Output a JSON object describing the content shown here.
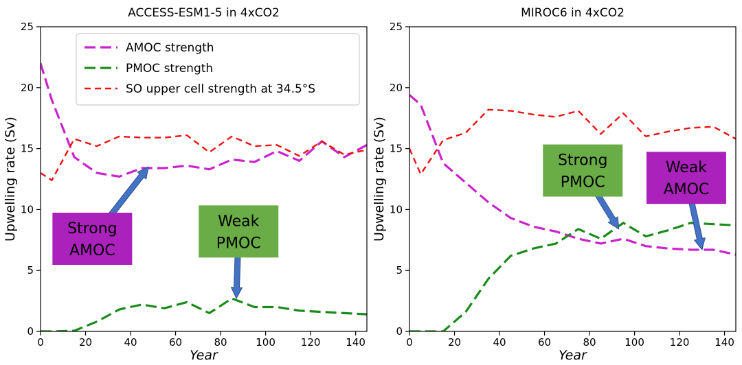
{
  "chart_data": [
    {
      "type": "line",
      "title": "ACCESS-ESM1-5 in 4xCO2",
      "xlabel": "Year",
      "ylabel": "Upwelling rate (Sv)",
      "xlim": [
        0,
        145
      ],
      "ylim": [
        0,
        25
      ],
      "xticks": [
        "0",
        "20",
        "40",
        "60",
        "80",
        "100",
        "120",
        "140"
      ],
      "yticks": [
        "0",
        "5",
        "10",
        "15",
        "20",
        "25"
      ],
      "grid": false,
      "legend": {
        "placement": "top",
        "entries": [
          "AMOC strength",
          "PMOC strength",
          "SO upper cell strength at 34.5°S"
        ]
      },
      "series": [
        {
          "name": "AMOC strength",
          "color": "#cc22cc",
          "style": "long-dash",
          "x": [
            0,
            5,
            15,
            25,
            35,
            45,
            55,
            65,
            75,
            85,
            95,
            105,
            115,
            125,
            135,
            145
          ],
          "y": [
            22.0,
            19.0,
            14.3,
            13.0,
            12.7,
            13.4,
            13.4,
            13.6,
            13.3,
            14.1,
            13.9,
            14.8,
            14.0,
            15.6,
            14.3,
            15.3
          ]
        },
        {
          "name": "PMOC strength",
          "color": "#1a8a1a",
          "style": "long-dash",
          "x": [
            0,
            5,
            15,
            25,
            35,
            45,
            55,
            65,
            75,
            85,
            95,
            105,
            115,
            125,
            135,
            145
          ],
          "y": [
            0.0,
            0.0,
            0.05,
            0.8,
            1.8,
            2.2,
            1.9,
            2.4,
            1.5,
            2.7,
            2.0,
            2.0,
            1.7,
            1.6,
            1.5,
            1.4
          ]
        },
        {
          "name": "SO upper cell strength at 34.5°S",
          "color": "#ee1111",
          "style": "short-dash",
          "x": [
            0,
            5,
            15,
            25,
            35,
            45,
            55,
            65,
            75,
            85,
            95,
            105,
            115,
            125,
            135,
            145
          ],
          "y": [
            13.0,
            12.4,
            15.8,
            15.2,
            16.0,
            15.9,
            15.9,
            16.1,
            14.7,
            16.0,
            15.2,
            15.3,
            14.4,
            15.6,
            14.5,
            14.9
          ]
        }
      ],
      "annotations": [
        {
          "text": [
            "Strong",
            "AMOC"
          ],
          "box_color": "#aa22bb",
          "x": 23,
          "y": 7.6,
          "arrow_to": [
            48,
            13.5
          ]
        },
        {
          "text": [
            "Weak",
            "PMOC"
          ],
          "box_color": "#6aad47",
          "x": 88,
          "y": 8.2,
          "arrow_to": [
            87,
            2.7
          ]
        }
      ]
    },
    {
      "type": "line",
      "title": "MIROC6 in 4xCO2",
      "xlabel": "Year",
      "ylabel": "Upwelling rate (Sv)",
      "xlim": [
        0,
        145
      ],
      "ylim": [
        0,
        25
      ],
      "xticks": [
        "0",
        "20",
        "40",
        "60",
        "80",
        "100",
        "120",
        "140"
      ],
      "yticks": [
        "0",
        "5",
        "10",
        "15",
        "20",
        "25"
      ],
      "grid": false,
      "series": [
        {
          "color": "#cc22cc",
          "style": "long-dash",
          "x": [
            0,
            5,
            15,
            25,
            35,
            45,
            55,
            65,
            75,
            85,
            95,
            105,
            115,
            125,
            135,
            145
          ],
          "y": [
            19.4,
            18.6,
            13.8,
            12.2,
            10.6,
            9.3,
            8.6,
            8.2,
            7.6,
            7.2,
            7.6,
            7.0,
            6.8,
            6.7,
            6.7,
            6.3
          ]
        },
        {
          "color": "#1a8a1a",
          "style": "long-dash",
          "x": [
            0,
            5,
            15,
            25,
            35,
            45,
            55,
            65,
            75,
            85,
            95,
            105,
            115,
            125,
            135,
            145
          ],
          "y": [
            0.0,
            0.0,
            0.0,
            1.6,
            4.3,
            6.2,
            6.8,
            7.2,
            8.4,
            7.6,
            8.9,
            7.8,
            8.3,
            8.9,
            8.8,
            8.7
          ]
        },
        {
          "color": "#ee1111",
          "style": "short-dash",
          "x": [
            0,
            5,
            15,
            25,
            35,
            45,
            55,
            65,
            75,
            85,
            95,
            105,
            115,
            125,
            135,
            145
          ],
          "y": [
            15.0,
            12.9,
            15.7,
            16.3,
            18.2,
            18.1,
            17.8,
            17.6,
            18.1,
            16.2,
            17.9,
            16.0,
            16.4,
            16.7,
            16.8,
            15.8
          ]
        }
      ],
      "annotations": [
        {
          "text": [
            "Strong",
            "PMOC"
          ],
          "box_color": "#6aad47",
          "x": 77,
          "y": 13.2,
          "arrow_to": [
            93,
            8.4
          ]
        },
        {
          "text": [
            "Weak",
            "AMOC"
          ],
          "box_color": "#aa22bb",
          "x": 123,
          "y": 12.6,
          "arrow_to": [
            130,
            6.7
          ]
        }
      ]
    }
  ]
}
